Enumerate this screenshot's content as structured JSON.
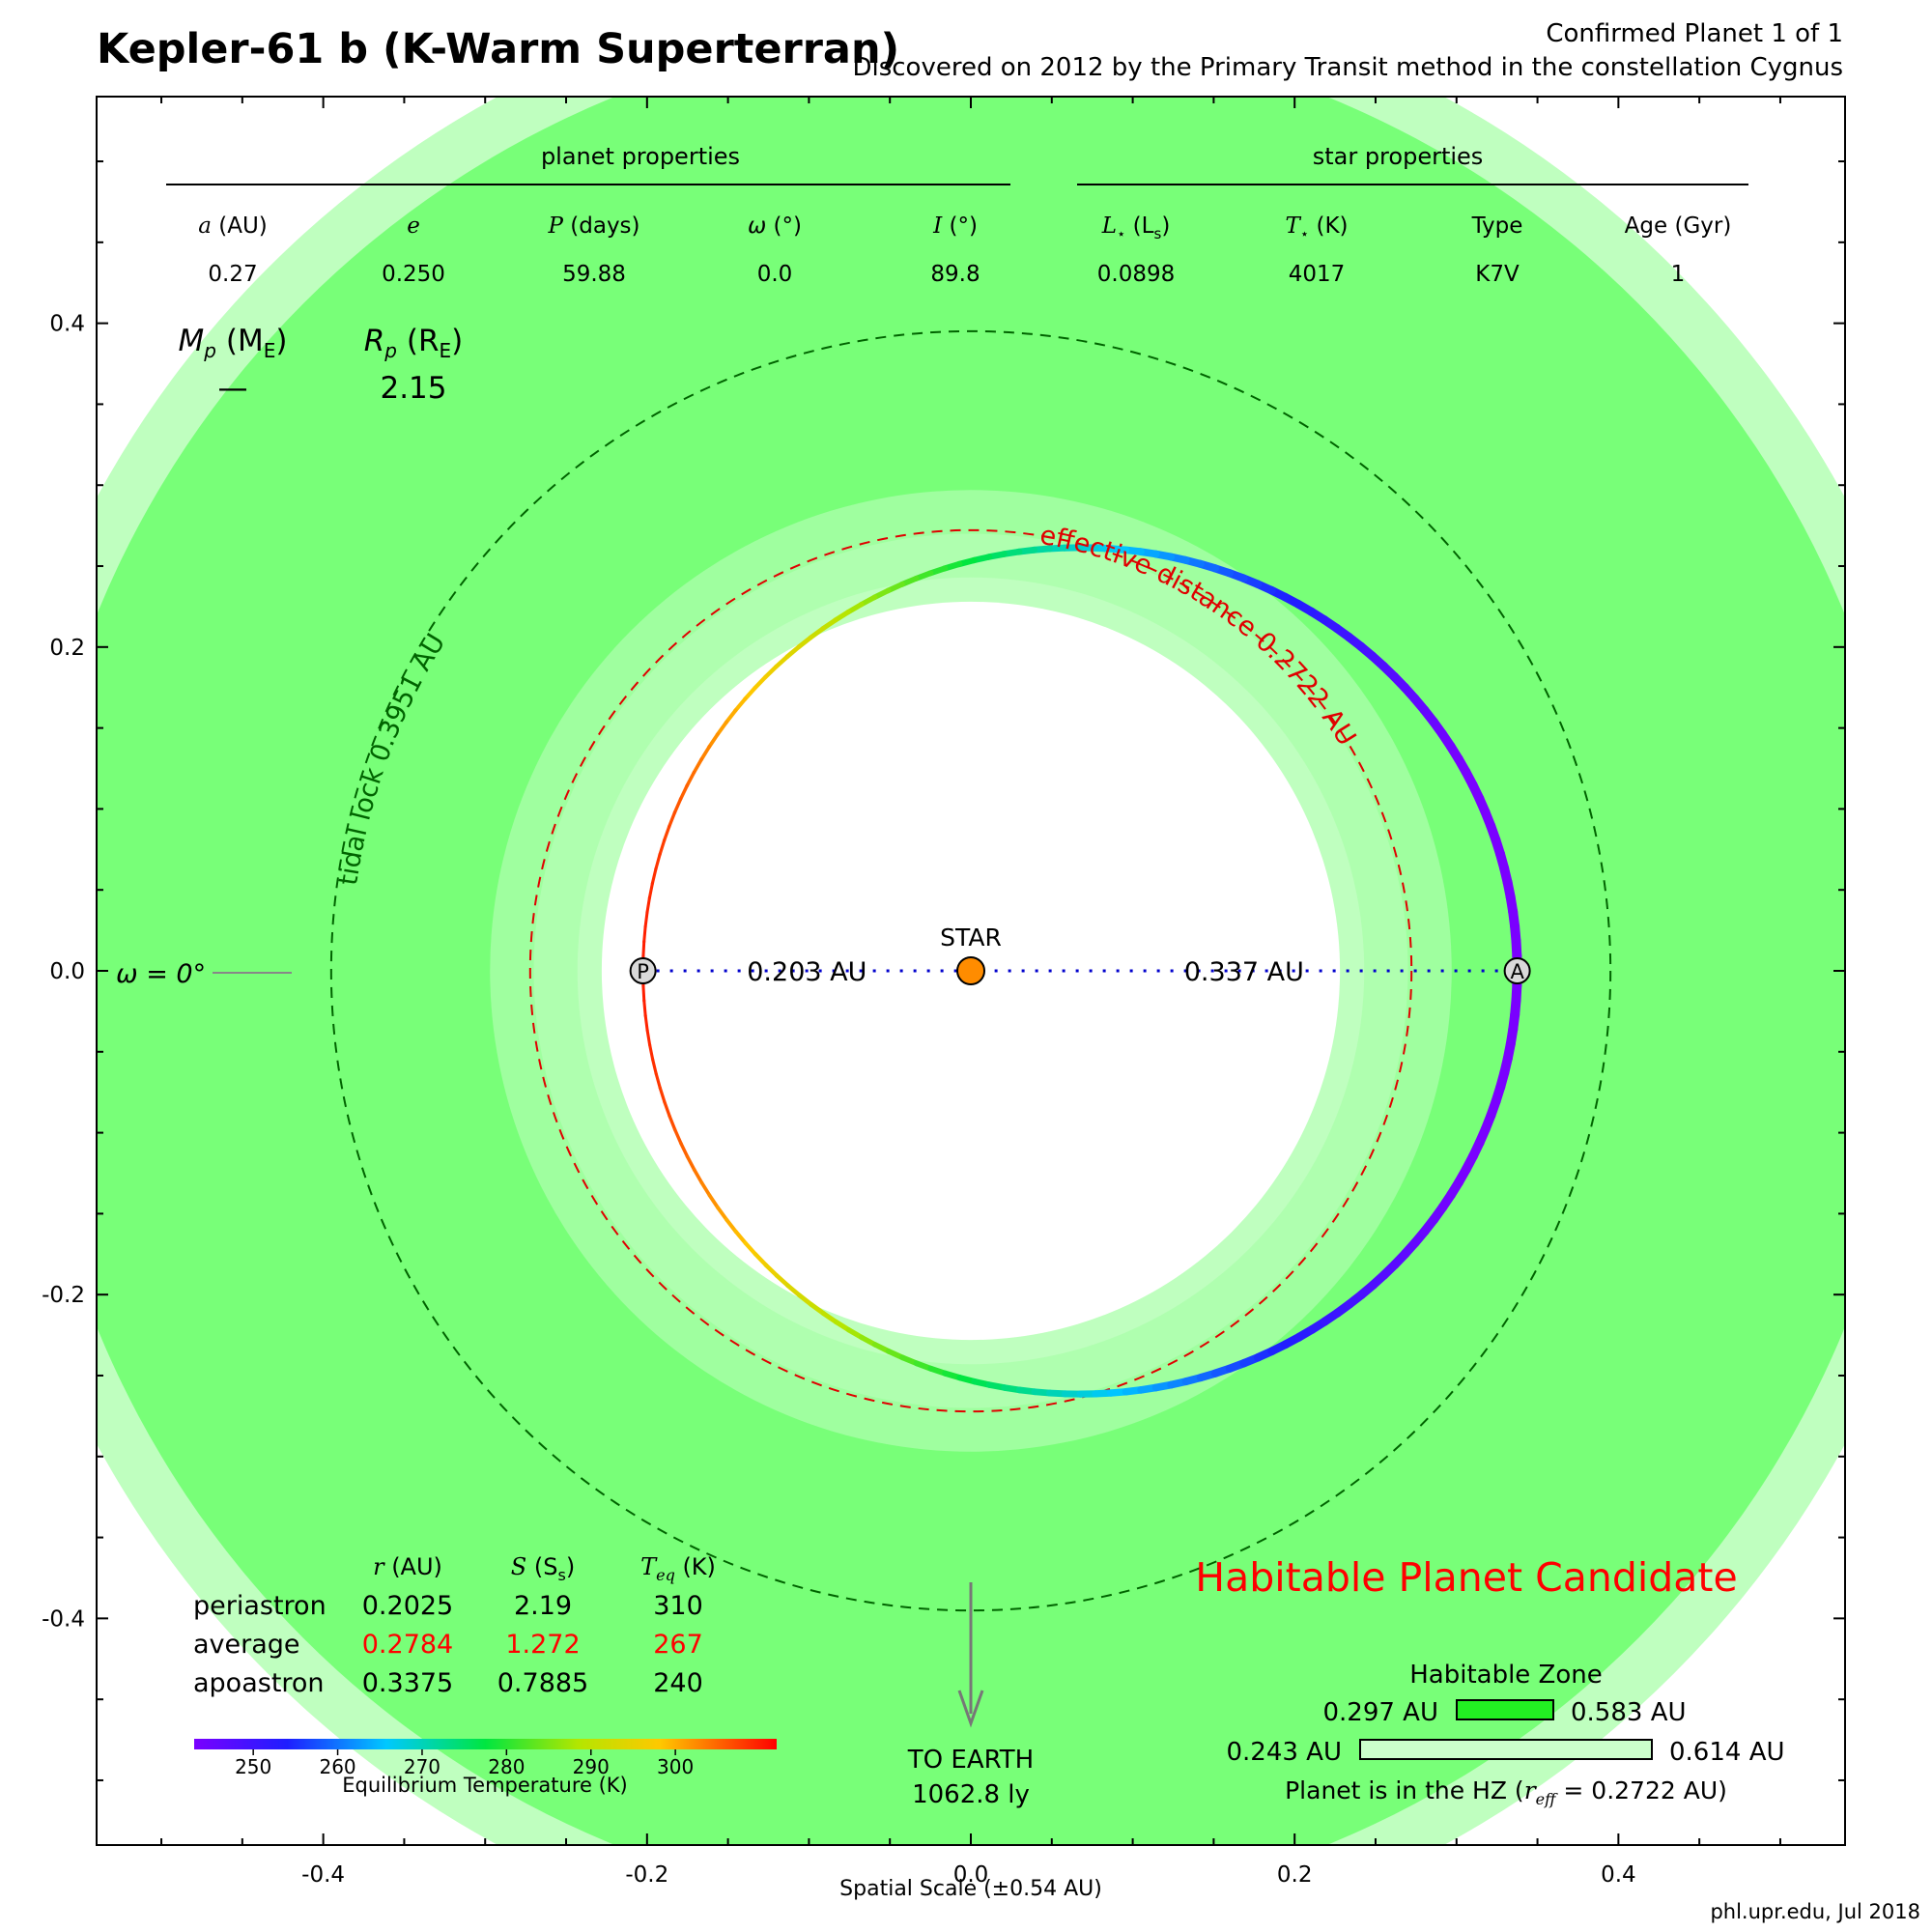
{
  "header": {
    "title": "Kepler-61 b (K-Warm Superterran)",
    "planet_count": "Confirmed Planet 1 of 1",
    "discovery": "Discovered on 2012 by the Primary Transit method in the constellation Cygnus"
  },
  "credit": "phl.upr.edu, Jul 2018",
  "colors": {
    "hz_conservative": "#78ff78",
    "hz_optimistic": "#bfffbf",
    "hz_mid": "#9fff9f",
    "star": "#ff8c00",
    "effective_distance": "#e00000",
    "tidal_lock": "#006400",
    "axis_line": "#0000cc",
    "candidate_text": "#ff0000"
  },
  "planet_properties": {
    "label": "planet properties",
    "headers": [
      {
        "sym": "a",
        "unit": " (AU)"
      },
      {
        "sym": "e",
        "unit": ""
      },
      {
        "sym": "P",
        "unit": " (days)"
      },
      {
        "sym": "ω",
        "unit": " (°)"
      },
      {
        "sym": "I",
        "unit": " (°)"
      }
    ],
    "values": [
      "0.27",
      "0.250",
      "59.88",
      "0.0",
      "89.8"
    ]
  },
  "star_properties": {
    "label": "star properties",
    "headers": [
      {
        "sym": "L",
        "sub": "⋆",
        "unit": " (L",
        "unitsub": "s",
        "unitend": ")"
      },
      {
        "sym": "T",
        "sub": "⋆",
        "unit": " (K)",
        "unitsub": "",
        "unitend": ""
      },
      {
        "sym": "",
        "sub": "",
        "unit": "Type",
        "unitsub": "",
        "unitend": ""
      },
      {
        "sym": "",
        "sub": "",
        "unit": "Age (Gyr)",
        "unitsub": "",
        "unitend": ""
      }
    ],
    "values": [
      "0.0898",
      "4017",
      "K7V",
      "1"
    ]
  },
  "mass_radius": {
    "mass_label": "M",
    "mass_sub": "p",
    "mass_unit": " (M",
    "mass_unit_sub": "E",
    "mass_unit_end": ")",
    "radius_label": "R",
    "radius_sub": "p",
    "radius_unit": " (R",
    "radius_unit_sub": "E",
    "radius_unit_end": ")",
    "mass_value": "—",
    "radius_value": "2.15"
  },
  "diagram": {
    "star_label": "STAR",
    "periastron_marker": "P",
    "apoastron_marker": "A",
    "periastron_distance": "0.203 AU",
    "apoastron_distance": "0.337 AU",
    "effective_distance_label": "effective distance 0.2722 AU",
    "tidal_lock_label": "tidal lock 0.3951 AU",
    "omega_label": "ω = 0°",
    "to_earth": "TO EARTH",
    "earth_distance": "1062.8 ly",
    "candidate": "Habitable Planet Candidate"
  },
  "orbit": {
    "semi_major_axis_au": 0.27,
    "eccentricity": 0.25,
    "periastron_au": 0.2025,
    "apoastron_au": 0.3375,
    "effective_distance_au": 0.2722,
    "tidal_lock_au": 0.3951
  },
  "habitable_zone": {
    "title": "Habitable Zone",
    "conservative_inner": "0.297 AU",
    "conservative_outer": "0.583 AU",
    "optimistic_inner": "0.243 AU",
    "optimistic_outer": "0.614 AU",
    "conservative_inner_au": 0.297,
    "conservative_outer_au": 0.583,
    "optimistic_inner_au": 0.243,
    "optimistic_outer_au": 0.614,
    "status_prefix": "Planet is in the HZ (",
    "status_sym": "r",
    "status_sub": "eff",
    "status_value": " = 0.2722 AU)"
  },
  "orbit_table": {
    "headers": [
      {
        "sym": "r",
        "sub": "",
        "unit": " (AU)",
        "unitsub": "",
        "unitend": ""
      },
      {
        "sym": "S",
        "sub": "",
        "unit": " (S",
        "unitsub": "s",
        "unitend": ")"
      },
      {
        "sym": "T",
        "sub": "eq",
        "unit": " (K)",
        "unitsub": "",
        "unitend": ""
      }
    ],
    "rows": [
      {
        "label": "periastron",
        "values": [
          "0.2025",
          "2.19",
          "310"
        ],
        "highlight": false
      },
      {
        "label": "average",
        "values": [
          "0.2784",
          "1.272",
          "267"
        ],
        "highlight": true
      },
      {
        "label": "apoastron",
        "values": [
          "0.3375",
          "0.7885",
          "240"
        ],
        "highlight": false
      }
    ]
  },
  "colorbar": {
    "label": "Equilibrium Temperature (K)",
    "ticks": [
      "250",
      "260",
      "270",
      "280",
      "290",
      "300"
    ],
    "tick_values": [
      250,
      260,
      270,
      280,
      290,
      300
    ],
    "min": 243,
    "max": 312
  },
  "chart_data": {
    "type": "scatter",
    "xlabel": "Spatial Scale (±0.54 AU)",
    "ylabel": "",
    "xlim": [
      -0.54,
      0.54
    ],
    "ylim": [
      -0.54,
      0.54
    ],
    "x_ticks": [
      "-0.4",
      "-0.2",
      "0.0",
      "0.2",
      "0.4"
    ],
    "x_tick_values": [
      -0.4,
      -0.2,
      0.0,
      0.2,
      0.4
    ],
    "y_ticks": [
      "0.4",
      "0.2",
      "0.0",
      "-0.2",
      "-0.4"
    ],
    "y_tick_values": [
      0.4,
      0.2,
      0.0,
      -0.2,
      -0.4
    ],
    "minor_step": 0.05
  }
}
